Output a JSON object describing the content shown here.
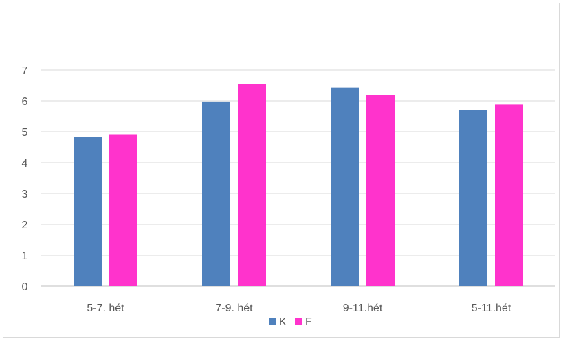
{
  "chart_data": {
    "type": "bar",
    "title": "",
    "xlabel": "",
    "ylabel": "",
    "categories": [
      "5-7. hét",
      "7-9. hét",
      "9-11.hét",
      "5-11.hét"
    ],
    "series": [
      {
        "name": "K",
        "color": "#4f81bd",
        "values": [
          4.84,
          5.98,
          6.43,
          5.7
        ]
      },
      {
        "name": "F",
        "color": "#ff33cc",
        "values": [
          4.9,
          6.55,
          6.19,
          5.88
        ]
      }
    ],
    "ylim": [
      0,
      7
    ],
    "yticks": [
      "0",
      "1",
      "2",
      "3",
      "4",
      "5",
      "6",
      "7"
    ],
    "grid": true,
    "legend_position": "bottom"
  }
}
